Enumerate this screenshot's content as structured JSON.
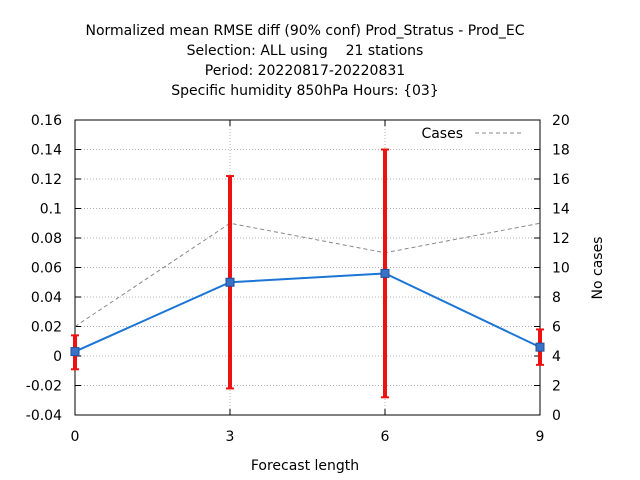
{
  "chart_data": {
    "type": "line",
    "title": [
      "Normalized mean RMSE diff (90% conf) Prod_Stratus - Prod_EC",
      "Selection: ALL using    21 stations",
      "Period: 20220817-20220831",
      "Specific humidity 850hPa  Hours: {03}"
    ],
    "xlabel": "Forecast length",
    "ylabel": "",
    "y2label": "No cases",
    "xlim": [
      0,
      9
    ],
    "ylim": [
      -0.04,
      0.16
    ],
    "y2lim": [
      0,
      20
    ],
    "x_ticks": [
      "0",
      "3",
      "6",
      "9"
    ],
    "y_ticks": [
      "-0.04",
      "-0.02",
      "0",
      "0.02",
      "0.04",
      "0.06",
      "0.08",
      "0.1",
      "0.12",
      "0.14",
      "0.16"
    ],
    "y2_ticks": [
      "0",
      "2",
      "4",
      "6",
      "8",
      "10",
      "12",
      "14",
      "16",
      "18",
      "20"
    ],
    "grid": true,
    "legend_position": "top-right",
    "series": [
      {
        "kind": "line_with_errorbars",
        "color": "#1a75d6",
        "errorbar_color": "#ee1111",
        "x": [
          0,
          3,
          6,
          9
        ],
        "y": [
          0.003,
          0.05,
          0.056,
          0.006
        ],
        "y_low": [
          -0.009,
          -0.022,
          -0.028,
          -0.006
        ],
        "y_high": [
          0.014,
          0.122,
          0.14,
          0.018
        ]
      },
      {
        "name": "Cases",
        "kind": "dashed_line",
        "axis": "y2",
        "color": "#888888",
        "x": [
          0,
          3,
          6,
          9
        ],
        "y": [
          6,
          13,
          11,
          13
        ]
      }
    ]
  }
}
